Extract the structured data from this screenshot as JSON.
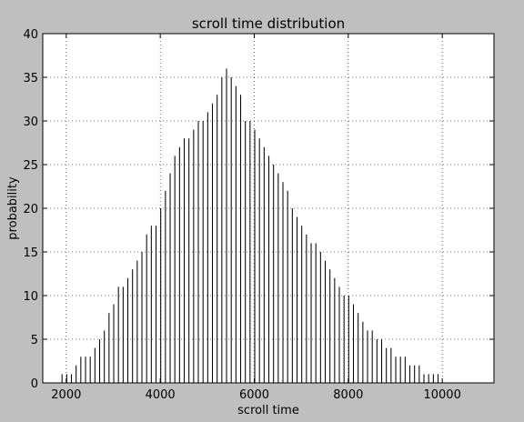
{
  "chart_data": {
    "type": "bar",
    "title": "scroll time distribution",
    "xlabel": "scroll time",
    "ylabel": "probability",
    "xlim": [
      1500,
      11100
    ],
    "ylim": [
      0,
      40
    ],
    "x_ticks": [
      2000,
      4000,
      6000,
      8000,
      10000
    ],
    "y_ticks": [
      0,
      5,
      10,
      15,
      20,
      25,
      30,
      35,
      40
    ],
    "grid": true,
    "bar_color": "#000000",
    "bin_width": 20,
    "bins_x": [
      1900,
      2000,
      2100,
      2200,
      2300,
      2400,
      2500,
      2600,
      2700,
      2800,
      2900,
      3000,
      3100,
      3200,
      3300,
      3400,
      3500,
      3600,
      3700,
      3800,
      3900,
      4000,
      4100,
      4200,
      4300,
      4400,
      4500,
      4600,
      4700,
      4800,
      4900,
      5000,
      5100,
      5200,
      5300,
      5400,
      5500,
      5600,
      5700,
      5800,
      5900,
      6000,
      6100,
      6200,
      6300,
      6400,
      6500,
      6600,
      6700,
      6800,
      6900,
      7000,
      7100,
      7200,
      7300,
      7400,
      7500,
      7600,
      7700,
      7800,
      7900,
      8000,
      8100,
      8200,
      8300,
      8400,
      8500,
      8600,
      8700,
      8800,
      8900,
      9000,
      9100,
      9200,
      9300,
      9400,
      9500,
      9600,
      9700,
      9800,
      9900
    ],
    "values": [
      1,
      1,
      1,
      2,
      3,
      3,
      3,
      4,
      5,
      6,
      8,
      9,
      11,
      11,
      12,
      13,
      14,
      15,
      17,
      18,
      18,
      20,
      22,
      24,
      26,
      27,
      28,
      28,
      29,
      30,
      30,
      31,
      32,
      33,
      35,
      36,
      35,
      34,
      33,
      30,
      30,
      29,
      28,
      27,
      26,
      25,
      24,
      23,
      22,
      20,
      19,
      18,
      17,
      16,
      16,
      15,
      14,
      13,
      12,
      11,
      10,
      10,
      9,
      8,
      7,
      6,
      6,
      5,
      5,
      4,
      4,
      3,
      3,
      3,
      2,
      2,
      2,
      1,
      1,
      1,
      1
    ]
  }
}
